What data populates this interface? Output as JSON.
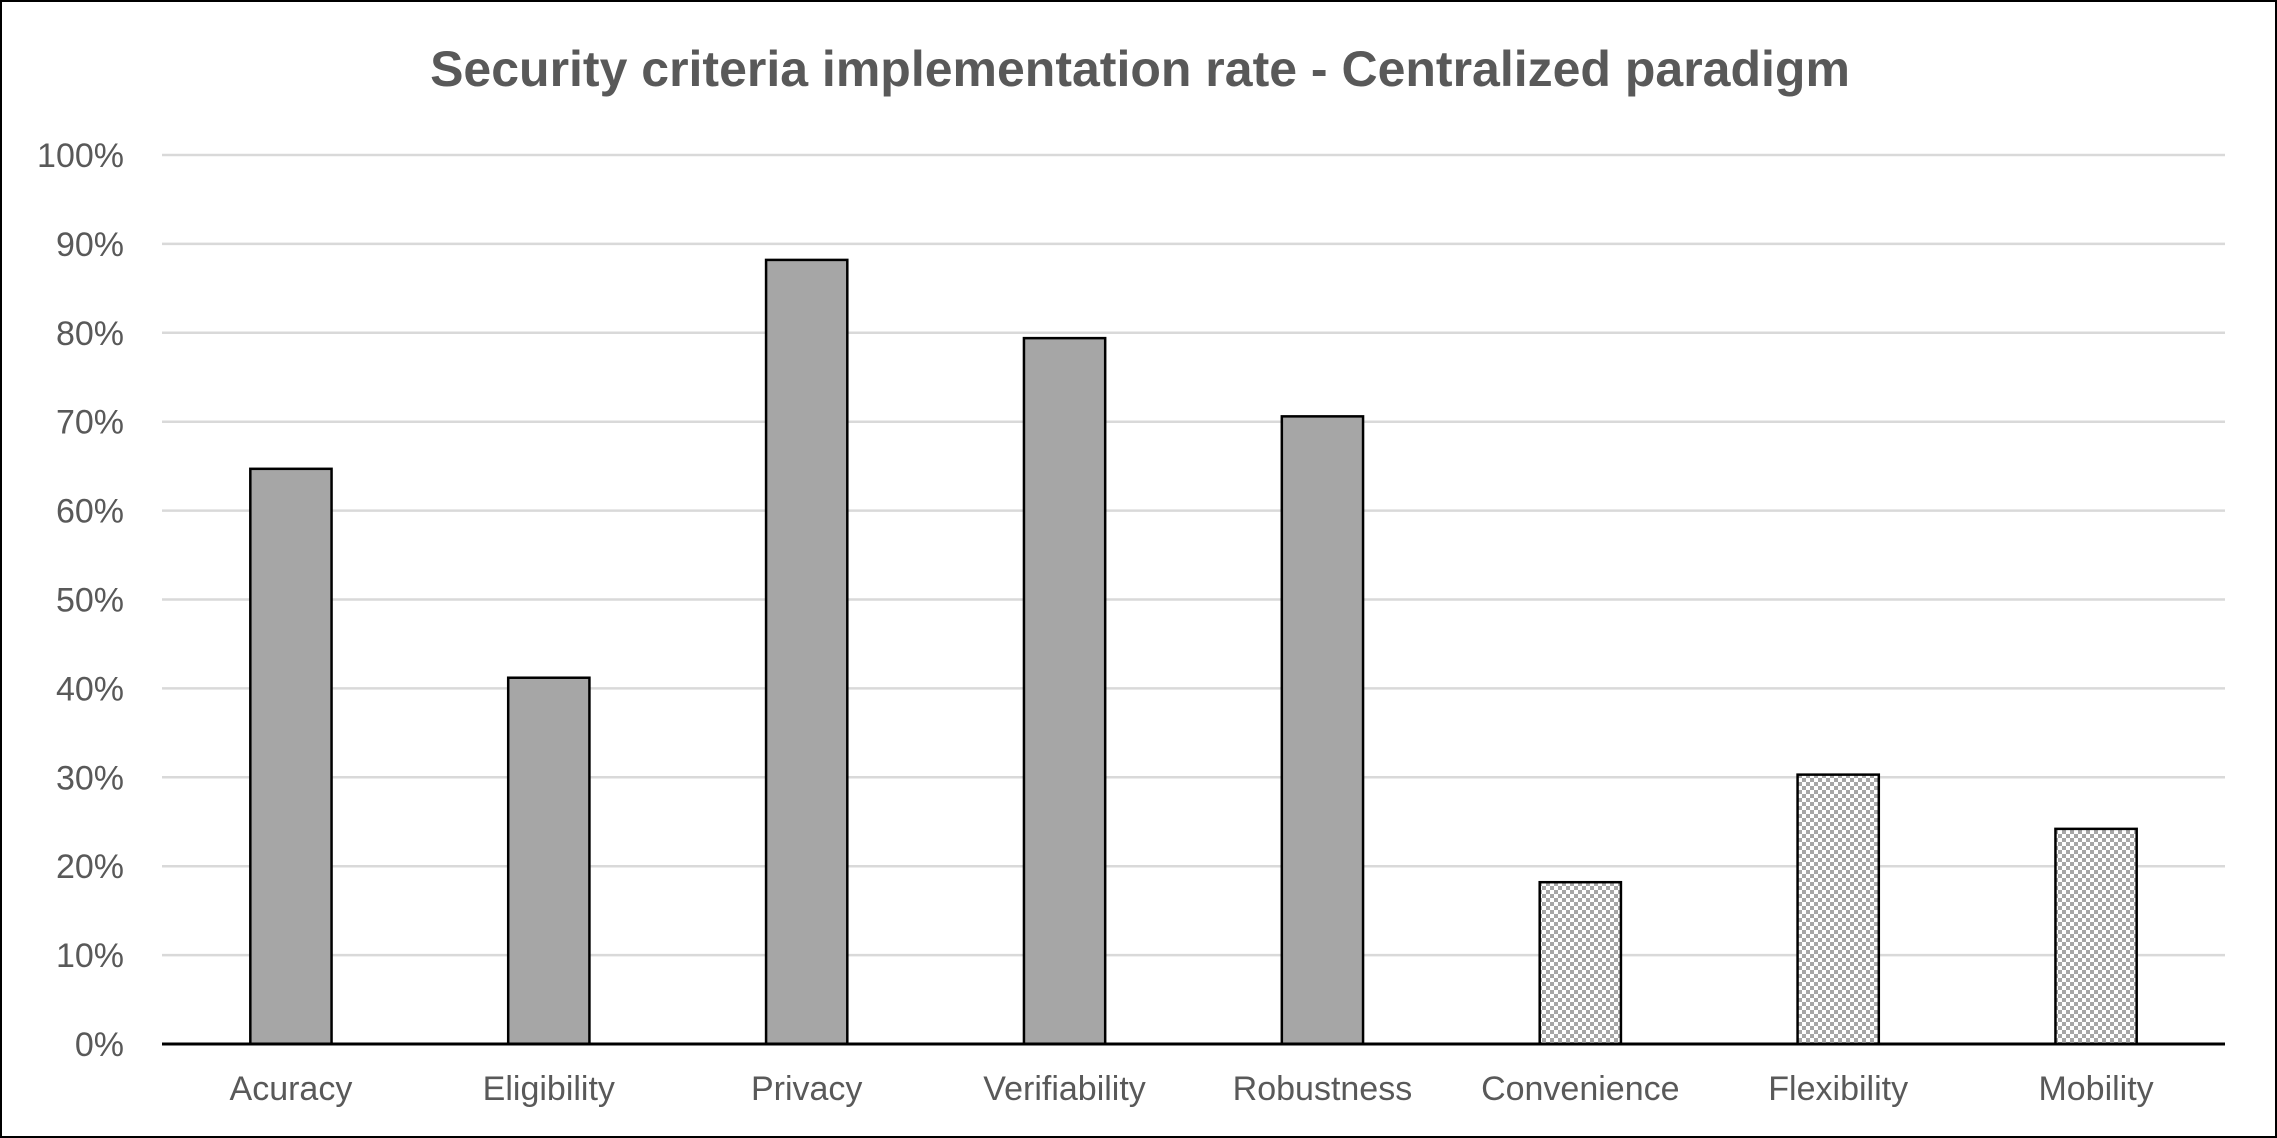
{
  "chart_data": {
    "type": "bar",
    "title": "Security criteria implementation rate - Centralized paradigm",
    "xlabel": "",
    "ylabel": "",
    "categories": [
      "Acuracy",
      "Eligibility",
      "Privacy",
      "Verifiability",
      "Robustness",
      "Convenience",
      "Flexibility",
      "Mobility"
    ],
    "values": [
      64.7,
      41.2,
      88.2,
      79.4,
      70.6,
      18.2,
      30.3,
      24.2
    ],
    "bar_fill": [
      "solid",
      "solid",
      "solid",
      "solid",
      "solid",
      "checkered",
      "checkered",
      "checkered"
    ],
    "ylim": [
      0,
      100
    ],
    "yticks": [
      0,
      10,
      20,
      30,
      40,
      50,
      60,
      70,
      80,
      90,
      100
    ],
    "ytick_labels": [
      "0%",
      "10%",
      "20%",
      "30%",
      "40%",
      "50%",
      "60%",
      "70%",
      "80%",
      "90%",
      "100%"
    ],
    "grid": true,
    "legend": "none",
    "colors": {
      "bar": "#a6a6a6",
      "bar_outline": "#000000",
      "checker": "#a6a6a6",
      "grid": "#d9d9d9",
      "axis": "#000000",
      "text": "#595959"
    }
  }
}
